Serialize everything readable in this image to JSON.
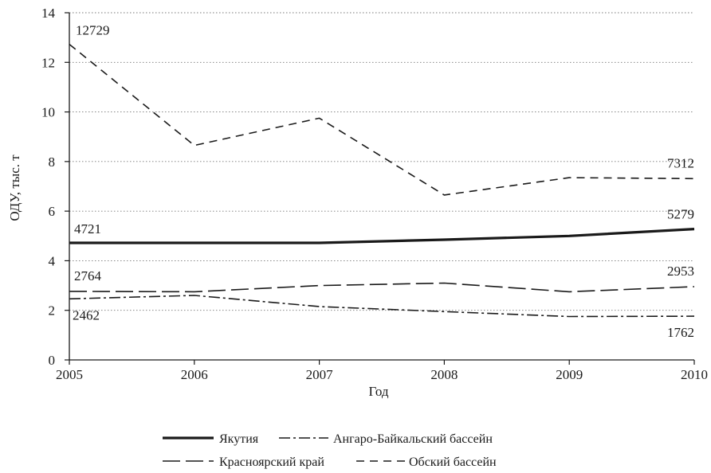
{
  "chart_data": {
    "type": "line",
    "title": "",
    "xlabel": "Год",
    "ylabel": "ОДУ, тыс. т",
    "x": [
      2005,
      2006,
      2007,
      2008,
      2009,
      2010
    ],
    "x_ticks": [
      "2005",
      "2006",
      "2007",
      "2008",
      "2009",
      "2010"
    ],
    "ylim": [
      0,
      14
    ],
    "y_ticks": [
      "0",
      "2",
      "4",
      "6",
      "8",
      "10",
      "12",
      "14"
    ],
    "grid": "horizontal dotted",
    "legend_position": "bottom",
    "series": [
      {
        "name": "Якутия",
        "style": "solid",
        "values": [
          4.721,
          4.72,
          4.72,
          4.85,
          5.0,
          5.279
        ]
      },
      {
        "name": "Ангаро-Байкальский бассейн",
        "style": "dash-dot",
        "values": [
          2.462,
          2.6,
          2.15,
          1.95,
          1.75,
          1.762
        ]
      },
      {
        "name": "Красноярский край",
        "style": "long-dash",
        "values": [
          2.764,
          2.75,
          3.0,
          3.1,
          2.75,
          2.953
        ]
      },
      {
        "name": "Обский бассейн",
        "style": "dash",
        "values": [
          12.729,
          8.65,
          9.75,
          6.65,
          7.35,
          7.312
        ]
      }
    ],
    "annotations": [
      {
        "text": "12729",
        "series": "Обский бассейн",
        "at": 2005,
        "anchor": "start",
        "dx": 8,
        "dy": -12
      },
      {
        "text": "7312",
        "series": "Обский бассейн",
        "at": 2010,
        "anchor": "end",
        "dx": 0,
        "dy": -14
      },
      {
        "text": "4721",
        "series": "Якутия",
        "at": 2005,
        "anchor": "start",
        "dx": 6,
        "dy": -12
      },
      {
        "text": "5279",
        "series": "Якутия",
        "at": 2010,
        "anchor": "end",
        "dx": 0,
        "dy": -13
      },
      {
        "text": "2764",
        "series": "Красноярский край",
        "at": 2005,
        "anchor": "start",
        "dx": 6,
        "dy": -14
      },
      {
        "text": "2953",
        "series": "Красноярский край",
        "at": 2010,
        "anchor": "end",
        "dx": 0,
        "dy": -14
      },
      {
        "text": "2462",
        "series": "Ангаро-Байкальский бассейн",
        "at": 2005,
        "anchor": "start",
        "dx": 4,
        "dy": 26
      },
      {
        "text": "1762",
        "series": "Ангаро-Байкальский бассейн",
        "at": 2010,
        "anchor": "end",
        "dx": 0,
        "dy": 26
      }
    ]
  }
}
